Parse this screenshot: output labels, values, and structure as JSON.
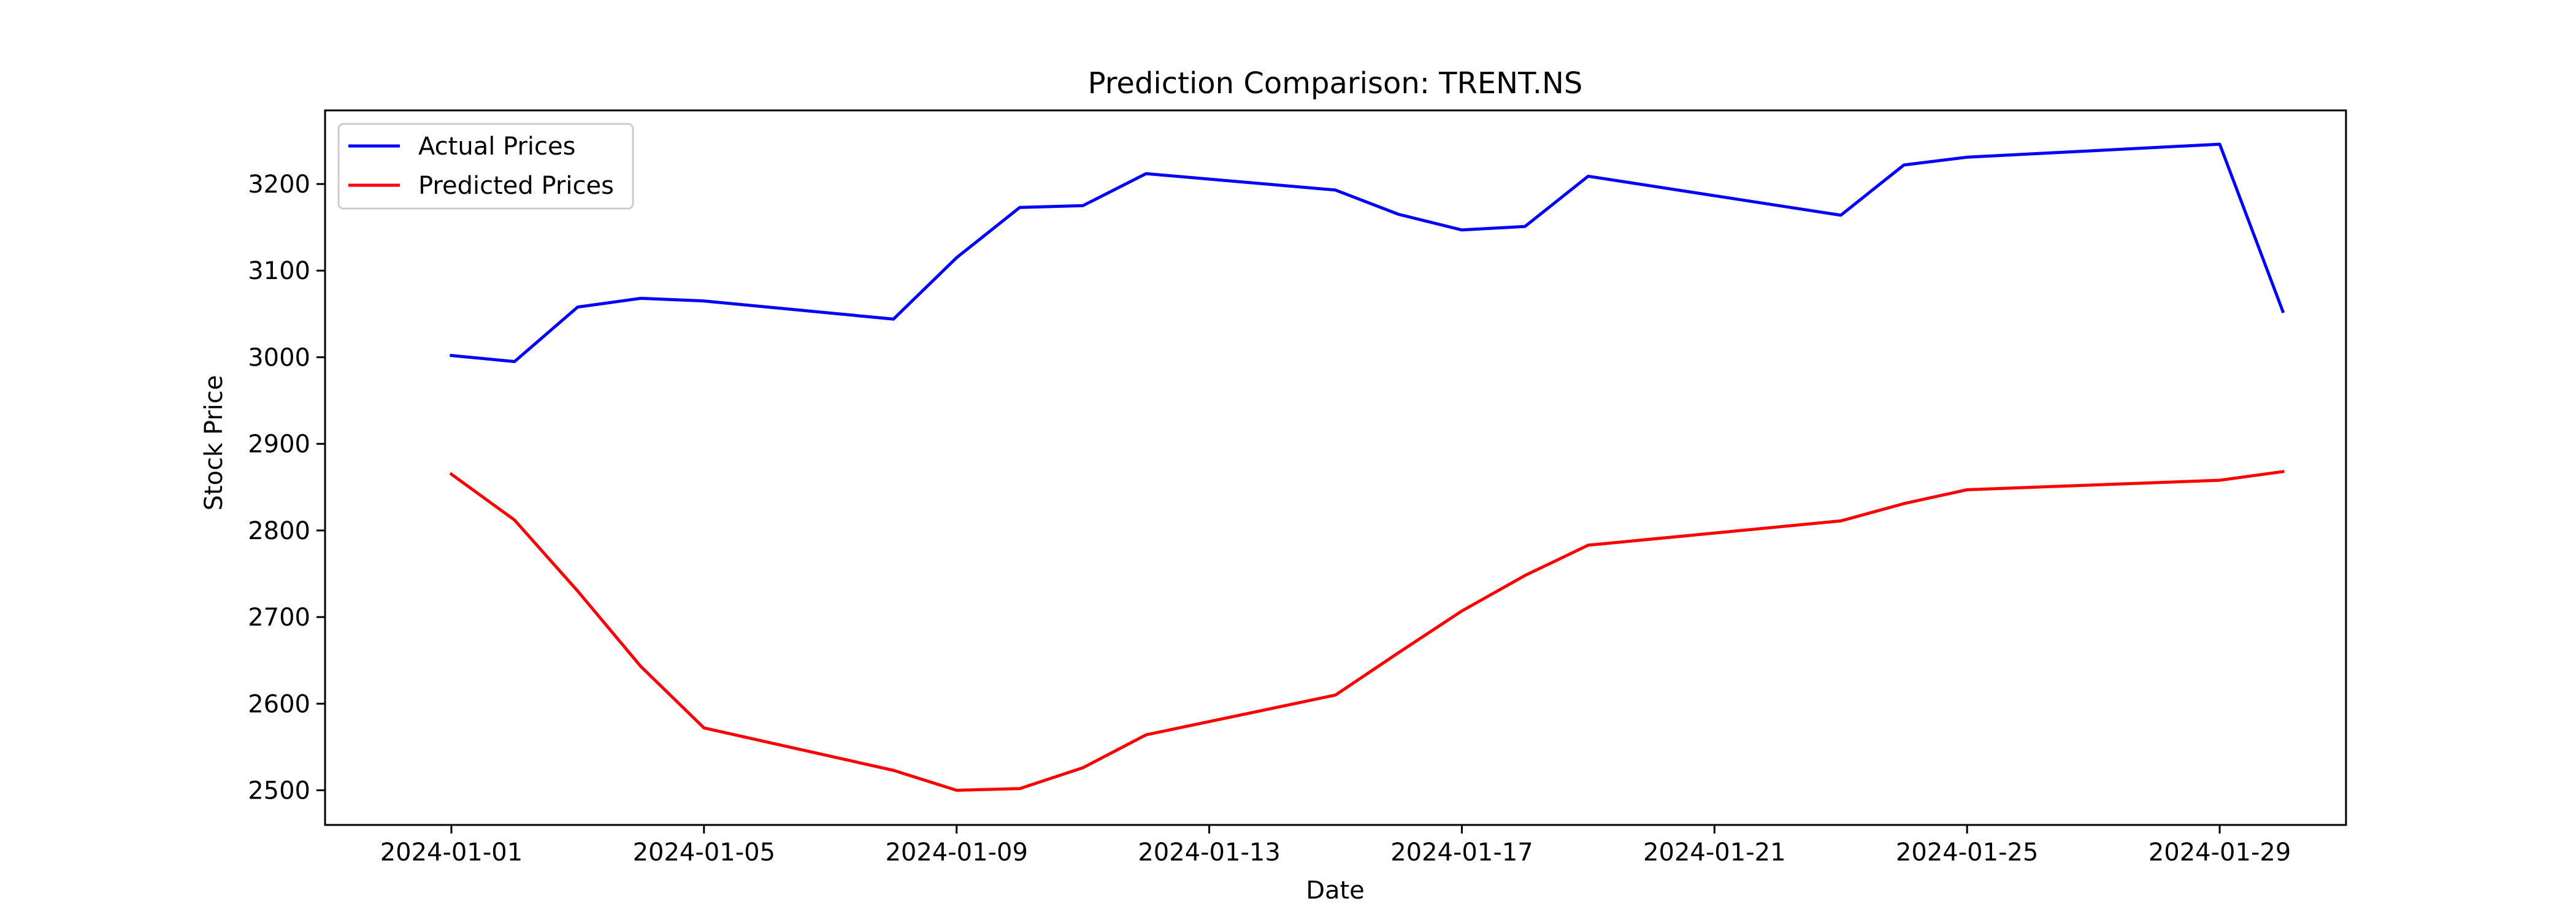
{
  "chart_data": {
    "type": "line",
    "title": "Prediction Comparison: TRENT.NS",
    "xlabel": "Date",
    "ylabel": "Stock Price",
    "x_tick_labels": [
      "2024-01-01",
      "2024-01-05",
      "2024-01-09",
      "2024-01-13",
      "2024-01-17",
      "2024-01-21",
      "2024-01-25",
      "2024-01-29"
    ],
    "y_ticks": [
      2500,
      2600,
      2700,
      2800,
      2900,
      3000,
      3100,
      3200
    ],
    "xlim": [
      "2023-12-30",
      "2024-01-31"
    ],
    "ylim": [
      2460,
      3285
    ],
    "grid": false,
    "legend_position": "top-left",
    "x": [
      "2024-01-01",
      "2024-01-02",
      "2024-01-03",
      "2024-01-04",
      "2024-01-05",
      "2024-01-08",
      "2024-01-09",
      "2024-01-10",
      "2024-01-11",
      "2024-01-12",
      "2024-01-15",
      "2024-01-16",
      "2024-01-17",
      "2024-01-18",
      "2024-01-19",
      "2024-01-23",
      "2024-01-24",
      "2024-01-25",
      "2024-01-29",
      "2024-01-30"
    ],
    "series": [
      {
        "name": "Actual Prices",
        "color": "#0000ff",
        "values": [
          3002,
          2995,
          3058,
          3068,
          3065,
          3044,
          3115,
          3173,
          3175,
          3212,
          3193,
          3165,
          3147,
          3151,
          3209,
          3164,
          3222,
          3231,
          3246,
          3053
        ]
      },
      {
        "name": "Predicted Prices",
        "color": "#ff0000",
        "values": [
          2865,
          2812,
          2730,
          2643,
          2572,
          2523,
          2500,
          2502,
          2526,
          2564,
          2610,
          2659,
          2707,
          2748,
          2783,
          2811,
          2831,
          2847,
          2858,
          2868
        ]
      }
    ]
  }
}
